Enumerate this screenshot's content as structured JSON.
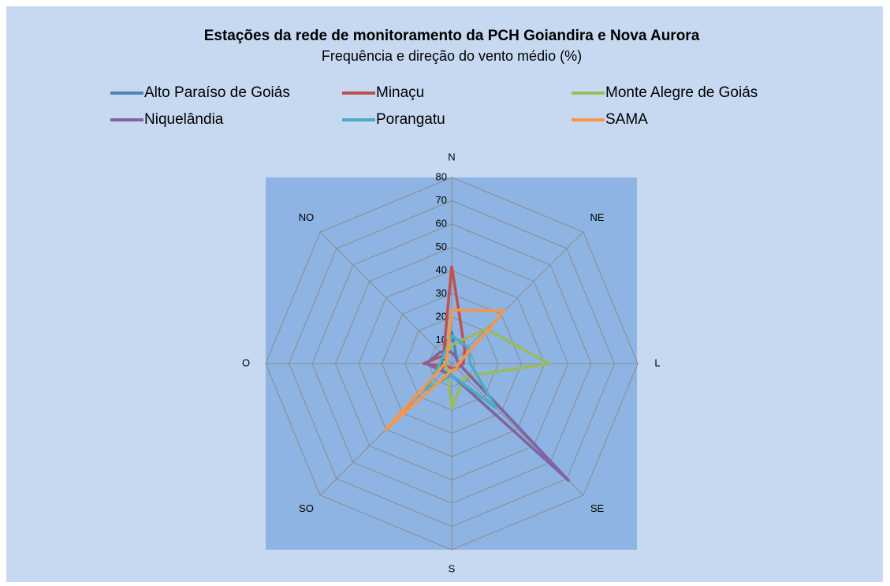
{
  "chart_data": {
    "type": "radar",
    "title": "Estações da rede de monitoramento da PCH Goiandira  e Nova Aurora",
    "subtitle": "Frequência e direção  do vento médio (%)",
    "categories": [
      "N",
      "NE",
      "L",
      "SE",
      "S",
      "SO",
      "O",
      "NO"
    ],
    "rlim": [
      0,
      80
    ],
    "rticks": [
      0,
      10,
      20,
      30,
      40,
      50,
      60,
      70,
      80
    ],
    "grid": true,
    "legend": "top",
    "series": [
      {
        "name": "Alto Paraíso de Goiás",
        "color": "#4f81bd",
        "values": [
          14,
          3,
          3,
          70,
          5,
          5,
          5,
          5
        ]
      },
      {
        "name": "Minaçu",
        "color": "#c0504d",
        "values": [
          42,
          8,
          5,
          3,
          2,
          2,
          12,
          5
        ]
      },
      {
        "name": "Monte Alegre de Goiás",
        "color": "#9bbb59",
        "values": [
          8,
          21,
          42,
          8,
          19,
          3,
          3,
          3
        ]
      },
      {
        "name": "Niquelândia",
        "color": "#8064a2",
        "values": [
          5,
          3,
          3,
          71,
          5,
          5,
          11,
          7
        ]
      },
      {
        "name": "Porangatu",
        "color": "#4bacc6",
        "values": [
          12,
          10,
          8,
          27,
          5,
          16,
          5,
          5
        ]
      },
      {
        "name": "SAMA",
        "color": "#f79646",
        "values": [
          23,
          32,
          3,
          3,
          3,
          40,
          3,
          3
        ]
      }
    ]
  }
}
